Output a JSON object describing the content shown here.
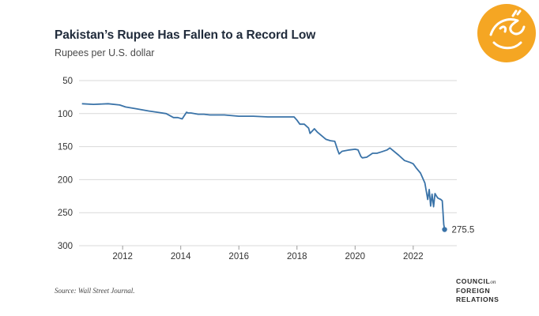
{
  "header": {
    "title": "Pakistan’s Rupee Has Fallen to a Record Low",
    "subtitle": "Rupees per U.S. dollar"
  },
  "footer": {
    "source": "Source: Wall Street Journal.",
    "cfr_line1": "COUNCIL",
    "cfr_on": "on",
    "cfr_line2": "FOREIGN",
    "cfr_line3": "RELATIONS"
  },
  "logo": {
    "icon": "orange-calligraphy-badge",
    "color": "#f5a623"
  },
  "colors": {
    "line": "#3a73a8",
    "grid": "#d9d9d9",
    "axis_text": "#333333"
  },
  "chart_data": {
    "type": "line",
    "title": "Pakistan’s Rupee Has Fallen to a Record Low",
    "subtitle": "Rupees per U.S. dollar",
    "xlabel": "",
    "ylabel": "",
    "xlim": [
      2010.5,
      2023.5
    ],
    "ylim": [
      50,
      300
    ],
    "y_inverted": true,
    "grid": "horizontal",
    "x_ticks": [
      2012,
      2014,
      2016,
      2018,
      2020,
      2022
    ],
    "y_ticks": [
      50,
      100,
      150,
      200,
      250,
      300
    ],
    "annotation": {
      "label": "275.5",
      "x": 2023.08,
      "y": 275.5
    },
    "series": [
      {
        "x": [
          2010.6,
          2011.0,
          2011.5,
          2011.9,
          2012.1,
          2012.5,
          2012.9,
          2013.2,
          2013.5,
          2013.75,
          2013.9,
          2014.05,
          2014.2,
          2014.25,
          2014.35,
          2014.6,
          2014.8,
          2015.0,
          2015.5,
          2016.0,
          2016.5,
          2017.0,
          2017.5,
          2017.9,
          2018.0,
          2018.1,
          2018.25,
          2018.4,
          2018.45,
          2018.6,
          2018.7,
          2019.0,
          2019.15,
          2019.3,
          2019.4,
          2019.45,
          2019.55,
          2019.8,
          2020.0,
          2020.1,
          2020.2,
          2020.25,
          2020.4,
          2020.6,
          2020.75,
          2020.9,
          2021.1,
          2021.2,
          2021.5,
          2021.7,
          2021.9,
          2022.0,
          2022.1,
          2022.25,
          2022.4,
          2022.5,
          2022.55,
          2022.6,
          2022.65,
          2022.7,
          2022.75,
          2022.8,
          2022.85,
          2022.95,
          2023.0,
          2023.05,
          2023.08
        ],
        "values": [
          85,
          86,
          85,
          87,
          90,
          93,
          96,
          98,
          100,
          106,
          106,
          108,
          98,
          99,
          99,
          101,
          101,
          102,
          102,
          104,
          104,
          105,
          105,
          105,
          110,
          116,
          116,
          122,
          130,
          123,
          128,
          139,
          141,
          142,
          155,
          161,
          157,
          155,
          154,
          155,
          165,
          167,
          166,
          160,
          160,
          158,
          155,
          152,
          163,
          171,
          174,
          176,
          182,
          190,
          205,
          230,
          215,
          240,
          222,
          241,
          221,
          225,
          228,
          230,
          232,
          268,
          275.5
        ]
      }
    ]
  }
}
